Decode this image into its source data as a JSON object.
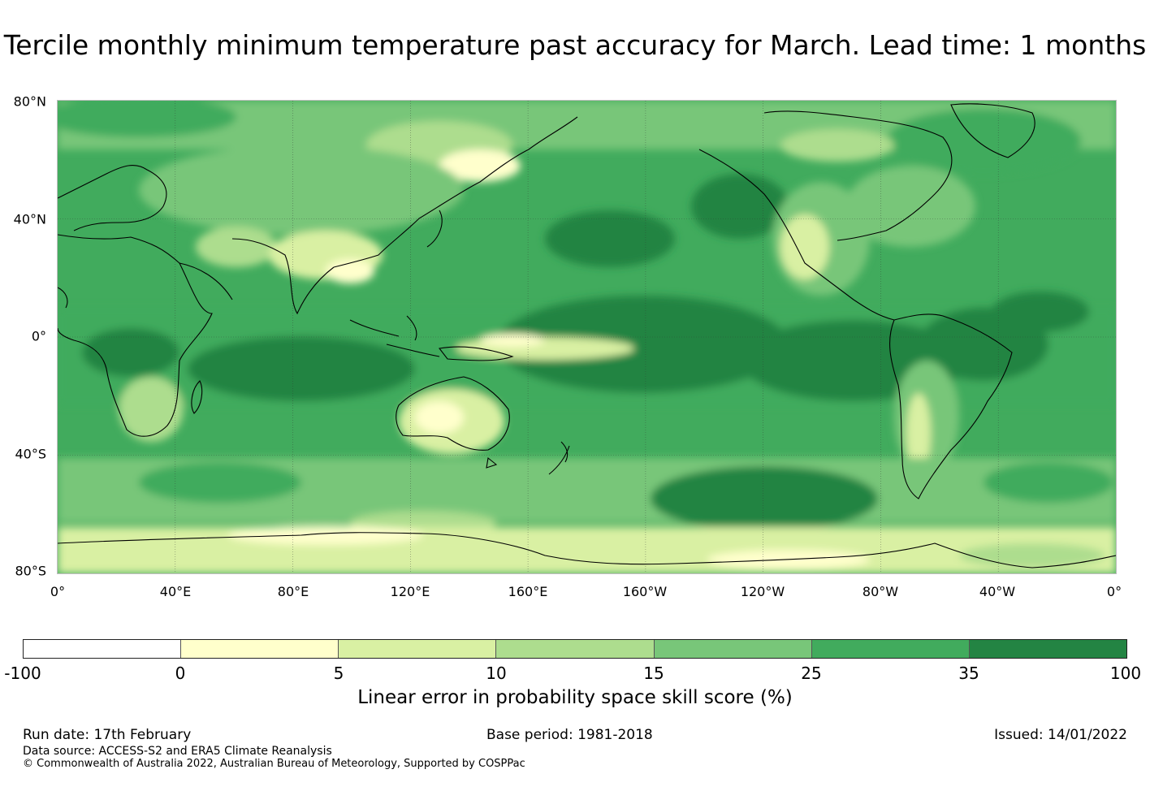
{
  "title": "Tercile monthly minimum temperature past accuracy for March. Lead time: 1 months",
  "map": {
    "lat_labels": [
      "80°N",
      "40°N",
      "0°",
      "40°S",
      "80°S"
    ],
    "lon_labels": [
      "0°",
      "40°E",
      "80°E",
      "120°E",
      "160°E",
      "160°W",
      "120°W",
      "80°W",
      "40°W",
      "0°"
    ]
  },
  "colorbar": {
    "ticks": [
      "-100",
      "0",
      "5",
      "10",
      "15",
      "25",
      "35",
      "100"
    ],
    "colors": [
      "#ffffff",
      "#ffffcc",
      "#d9f0a3",
      "#addd8e",
      "#78c679",
      "#41ab5d",
      "#238443"
    ],
    "label": "Linear error in probability space skill score (%)"
  },
  "footer": {
    "run_date": "Run date: 17th February",
    "base_period": "Base period: 1981-2018",
    "issued": "Issued: 14/01/2022",
    "data_source": "Data source: ACCESS-S2 and ERA5 Climate Reanalysis",
    "copyright": "© Commonwealth of Australia 2022, Australian Bureau of Meteorology, Supported by COSPPac"
  }
}
